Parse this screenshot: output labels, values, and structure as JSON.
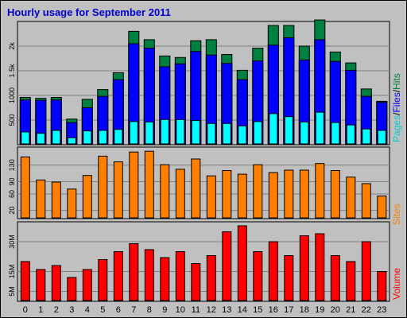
{
  "title": "Hourly usage for September 2011",
  "colors": {
    "hits": "#008040",
    "files": "#0000ff",
    "pages": "#00ffff",
    "sites": "#ff8000",
    "volume": "#ff0000",
    "sep": "#000000",
    "label_pages": "#00cccc",
    "label_files": "#0000ff",
    "label_hits": "#008040"
  },
  "legends": {
    "top": {
      "pages": "Pages",
      "sep1": "/",
      "files": "Files",
      "sep2": "/",
      "hits": "Hits"
    },
    "middle": "Sites",
    "bottom": "Volume"
  },
  "chart_data": [
    {
      "type": "bar",
      "panel": "hits_files_pages",
      "categories": [
        "0",
        "1",
        "2",
        "3",
        "4",
        "5",
        "6",
        "7",
        "8",
        "9",
        "10",
        "11",
        "12",
        "13",
        "14",
        "15",
        "16",
        "17",
        "18",
        "19",
        "20",
        "21",
        "22",
        "23"
      ],
      "yticks": [
        "500",
        "1000",
        "1.5k",
        "2k"
      ],
      "ylim": [
        0,
        2500
      ],
      "series": [
        {
          "name": "Hits",
          "values": [
            960,
            940,
            960,
            520,
            920,
            1120,
            1460,
            2300,
            2130,
            1800,
            1770,
            2110,
            2130,
            1830,
            1510,
            1960,
            2420,
            2420,
            2000,
            2530,
            1880,
            1660,
            1130,
            880
          ]
        },
        {
          "name": "Files",
          "values": [
            910,
            900,
            910,
            450,
            750,
            980,
            1320,
            2050,
            1960,
            1580,
            1640,
            1890,
            1820,
            1650,
            1320,
            1700,
            2020,
            2170,
            1720,
            2130,
            1690,
            1510,
            980,
            860
          ]
        },
        {
          "name": "Pages",
          "values": [
            260,
            230,
            290,
            140,
            280,
            290,
            310,
            470,
            460,
            510,
            510,
            490,
            430,
            430,
            380,
            470,
            630,
            570,
            460,
            660,
            450,
            400,
            320,
            290
          ]
        }
      ]
    },
    {
      "type": "bar",
      "panel": "sites",
      "categories": [
        "0",
        "1",
        "2",
        "3",
        "4",
        "5",
        "6",
        "7",
        "8",
        "9",
        "10",
        "11",
        "12",
        "13",
        "14",
        "15",
        "16",
        "17",
        "18",
        "19",
        "20",
        "21",
        "22",
        "23"
      ],
      "yticks": [
        "20",
        "60",
        "90",
        "130"
      ],
      "ylim": [
        0,
        174
      ],
      "series": [
        {
          "name": "Sites",
          "values": [
            150,
            94,
            89,
            72,
            105,
            152,
            138,
            162,
            164,
            131,
            120,
            145,
            104,
            117,
            108,
            131,
            112,
            118,
            118,
            134,
            117,
            101,
            85,
            55
          ]
        }
      ]
    },
    {
      "type": "bar",
      "panel": "volume",
      "categories": [
        "0",
        "1",
        "2",
        "3",
        "4",
        "5",
        "6",
        "7",
        "8",
        "9",
        "10",
        "11",
        "12",
        "13",
        "14",
        "15",
        "16",
        "17",
        "18",
        "19",
        "20",
        "21",
        "22",
        "23"
      ],
      "yticks": [
        "5M",
        "15M",
        "30M"
      ],
      "ylim": [
        0,
        40
      ],
      "series": [
        {
          "name": "Volume",
          "values": [
            20,
            16,
            18,
            12,
            16,
            21,
            25,
            29,
            26,
            22,
            25,
            19,
            23,
            35,
            38,
            25,
            30,
            23,
            33,
            34,
            23,
            20,
            30,
            15
          ]
        }
      ]
    }
  ]
}
